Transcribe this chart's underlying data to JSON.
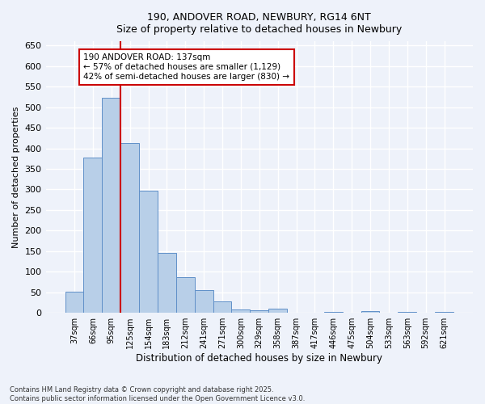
{
  "title_line1": "190, ANDOVER ROAD, NEWBURY, RG14 6NT",
  "title_line2": "Size of property relative to detached houses in Newbury",
  "xlabel": "Distribution of detached houses by size in Newbury",
  "ylabel": "Number of detached properties",
  "categories": [
    "37sqm",
    "66sqm",
    "95sqm",
    "125sqm",
    "154sqm",
    "183sqm",
    "212sqm",
    "241sqm",
    "271sqm",
    "300sqm",
    "329sqm",
    "358sqm",
    "387sqm",
    "417sqm",
    "446sqm",
    "475sqm",
    "504sqm",
    "533sqm",
    "563sqm",
    "592sqm",
    "621sqm"
  ],
  "values": [
    52,
    378,
    523,
    413,
    297,
    145,
    86,
    55,
    28,
    9,
    7,
    10,
    0,
    0,
    2,
    0,
    4,
    0,
    3,
    0,
    3
  ],
  "bar_color": "#b8cfe8",
  "bar_edge_color": "#6090c8",
  "background_color": "#eef2fa",
  "grid_color": "#ffffff",
  "vline_color": "#cc0000",
  "annotation_title": "190 ANDOVER ROAD: 137sqm",
  "annotation_line1": "← 57% of detached houses are smaller (1,129)",
  "annotation_line2": "42% of semi-detached houses are larger (830) →",
  "annotation_box_edgecolor": "#cc0000",
  "ylim": [
    0,
    660
  ],
  "yticks": [
    0,
    50,
    100,
    150,
    200,
    250,
    300,
    350,
    400,
    450,
    500,
    550,
    600,
    650
  ],
  "footnote1": "Contains HM Land Registry data © Crown copyright and database right 2025.",
  "footnote2": "Contains public sector information licensed under the Open Government Licence v3.0."
}
